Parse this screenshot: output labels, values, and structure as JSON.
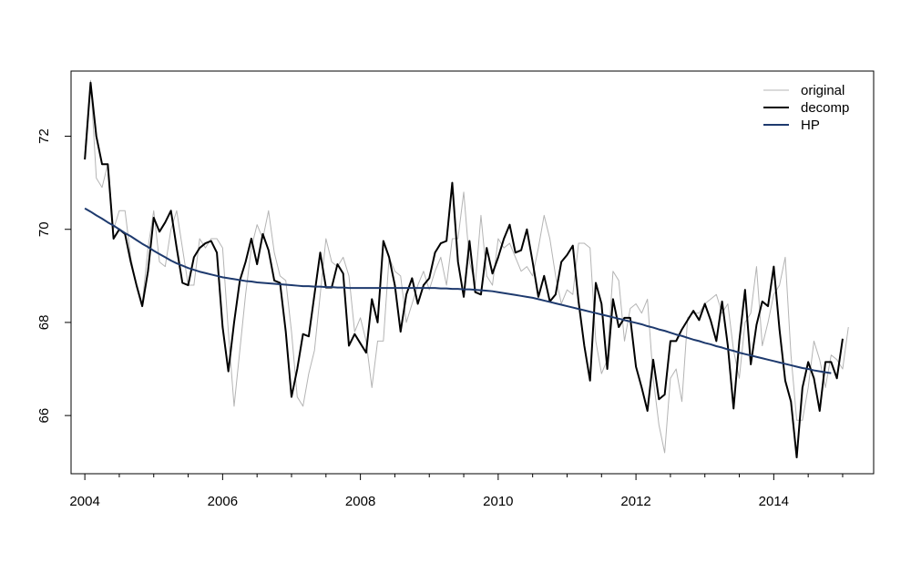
{
  "chart_data": {
    "type": "line",
    "title": "",
    "xlabel": "",
    "ylabel": "",
    "xlim": [
      2003.8,
      2015.45
    ],
    "ylim": [
      64.75,
      73.4
    ],
    "x_ticks": [
      2004,
      2006,
      2008,
      2010,
      2012,
      2014
    ],
    "x_tick_labels": [
      "2004",
      "2006",
      "2008",
      "2010",
      "2012",
      "2014"
    ],
    "x_minor_ticks": [
      2004.5,
      2005,
      2005.5,
      2006.5,
      2007,
      2007.5,
      2008.5,
      2009,
      2009.5,
      2010.5,
      2011,
      2011.5,
      2012.5,
      2013,
      2013.5,
      2014.5,
      2015
    ],
    "y_ticks": [
      66,
      68,
      70,
      72
    ],
    "y_tick_labels": [
      "66",
      "68",
      "70",
      "72"
    ],
    "grid": false,
    "legend": {
      "position": "top-right",
      "entries": [
        "original",
        "decomp",
        "HP"
      ]
    },
    "x_start": 2004.0,
    "x_step": 0.083333,
    "series": [
      {
        "name": "original",
        "color": "#b4b4b4",
        "values": [
          71.6,
          73.2,
          71.1,
          70.9,
          71.4,
          70.0,
          70.4,
          70.4,
          69.4,
          68.8,
          68.4,
          69.6,
          70.4,
          69.3,
          69.2,
          70.0,
          70.4,
          69.6,
          68.8,
          68.8,
          69.8,
          69.6,
          69.8,
          69.8,
          69.6,
          67.8,
          66.2,
          67.4,
          68.6,
          69.6,
          70.1,
          69.8,
          70.4,
          69.5,
          69.0,
          68.9,
          67.8,
          66.4,
          66.2,
          66.9,
          67.4,
          68.6,
          69.8,
          69.3,
          69.2,
          69.4,
          69.0,
          67.8,
          68.1,
          67.6,
          66.6,
          67.6,
          67.6,
          69.4,
          69.1,
          69.0,
          68.0,
          68.4,
          68.8,
          69.1,
          68.7,
          69.1,
          69.4,
          68.8,
          69.8,
          69.8,
          70.8,
          69.3,
          68.8,
          70.3,
          69.0,
          68.8,
          69.8,
          69.6,
          69.7,
          69.4,
          69.1,
          69.2,
          69.0,
          69.6,
          70.3,
          69.8,
          69.0,
          68.4,
          68.7,
          68.6,
          69.7,
          69.7,
          69.6,
          67.6,
          66.9,
          67.2,
          69.1,
          68.9,
          67.6,
          68.3,
          68.4,
          68.2,
          68.5,
          66.8,
          65.8,
          65.2,
          66.8,
          67.0,
          66.3,
          68.1,
          68.2,
          68.2,
          68.4,
          68.5,
          68.6,
          68.2,
          68.4,
          67.4,
          66.8,
          68.0,
          68.2,
          69.2,
          67.5,
          68.0,
          68.6,
          68.8,
          69.4,
          67.3,
          65.9,
          65.9,
          66.6,
          67.6,
          67.2,
          66.6,
          67.3,
          67.2,
          67.0,
          67.9
        ]
      },
      {
        "name": "decomp",
        "color": "#000000",
        "values": [
          71.5,
          73.15,
          72.0,
          71.4,
          71.4,
          69.8,
          70.0,
          69.9,
          69.3,
          68.8,
          68.35,
          69.1,
          70.25,
          69.95,
          70.15,
          70.4,
          69.6,
          68.85,
          68.8,
          69.4,
          69.6,
          69.7,
          69.75,
          69.5,
          67.9,
          66.95,
          68.0,
          68.9,
          69.3,
          69.8,
          69.25,
          69.9,
          69.55,
          68.9,
          68.85,
          67.8,
          66.4,
          67.0,
          67.75,
          67.7,
          68.6,
          69.5,
          68.75,
          68.75,
          69.25,
          69.05,
          67.5,
          67.75,
          67.55,
          67.35,
          68.5,
          68.0,
          69.75,
          69.4,
          68.8,
          67.8,
          68.6,
          68.95,
          68.4,
          68.8,
          68.95,
          69.5,
          69.7,
          69.75,
          71.0,
          69.3,
          68.55,
          69.75,
          68.65,
          68.6,
          69.6,
          69.05,
          69.4,
          69.8,
          70.1,
          69.5,
          69.55,
          70.0,
          69.3,
          68.55,
          69.0,
          68.45,
          68.6,
          69.3,
          69.45,
          69.65,
          68.45,
          67.5,
          66.75,
          68.85,
          68.4,
          67.0,
          68.5,
          67.9,
          68.1,
          68.1,
          67.05,
          66.6,
          66.1,
          67.2,
          66.35,
          66.45,
          67.6,
          67.6,
          67.85,
          68.05,
          68.25,
          68.05,
          68.4,
          68.05,
          67.6,
          68.45,
          67.5,
          66.15,
          67.6,
          68.7,
          67.1,
          67.95,
          68.45,
          68.35,
          69.2,
          67.85,
          66.75,
          66.3,
          65.1,
          66.6,
          67.15,
          66.8,
          66.1,
          67.15,
          67.15,
          66.8,
          67.65
        ]
      },
      {
        "name": "HP",
        "color": "#1e3a6e",
        "values": [
          70.45,
          70.38,
          70.3,
          70.23,
          70.15,
          70.08,
          70.0,
          69.92,
          69.85,
          69.77,
          69.69,
          69.62,
          69.54,
          69.47,
          69.4,
          69.33,
          69.27,
          69.22,
          69.17,
          69.13,
          69.09,
          69.06,
          69.03,
          69.0,
          68.97,
          68.95,
          68.93,
          68.91,
          68.89,
          68.88,
          68.86,
          68.85,
          68.84,
          68.83,
          68.82,
          68.81,
          68.8,
          68.79,
          68.78,
          68.78,
          68.77,
          68.77,
          68.76,
          68.76,
          68.75,
          68.75,
          68.74,
          68.74,
          68.74,
          68.74,
          68.74,
          68.74,
          68.74,
          68.74,
          68.74,
          68.74,
          68.74,
          68.74,
          68.74,
          68.74,
          68.74,
          68.74,
          68.73,
          68.73,
          68.72,
          68.72,
          68.71,
          68.71,
          68.7,
          68.69,
          68.68,
          68.67,
          68.65,
          68.63,
          68.61,
          68.59,
          68.57,
          68.55,
          68.53,
          68.5,
          68.47,
          68.44,
          68.41,
          68.38,
          68.35,
          68.32,
          68.29,
          68.26,
          68.23,
          68.2,
          68.17,
          68.14,
          68.11,
          68.08,
          68.05,
          68.02,
          67.99,
          67.96,
          67.92,
          67.89,
          67.85,
          67.82,
          67.78,
          67.74,
          67.71,
          67.67,
          67.63,
          67.6,
          67.56,
          67.53,
          67.49,
          67.46,
          67.42,
          67.39,
          67.35,
          67.32,
          67.29,
          67.26,
          67.23,
          67.2,
          67.17,
          67.14,
          67.11,
          67.08,
          67.05,
          67.02,
          67.0,
          66.97,
          66.95,
          66.93,
          66.91
        ]
      }
    ]
  }
}
